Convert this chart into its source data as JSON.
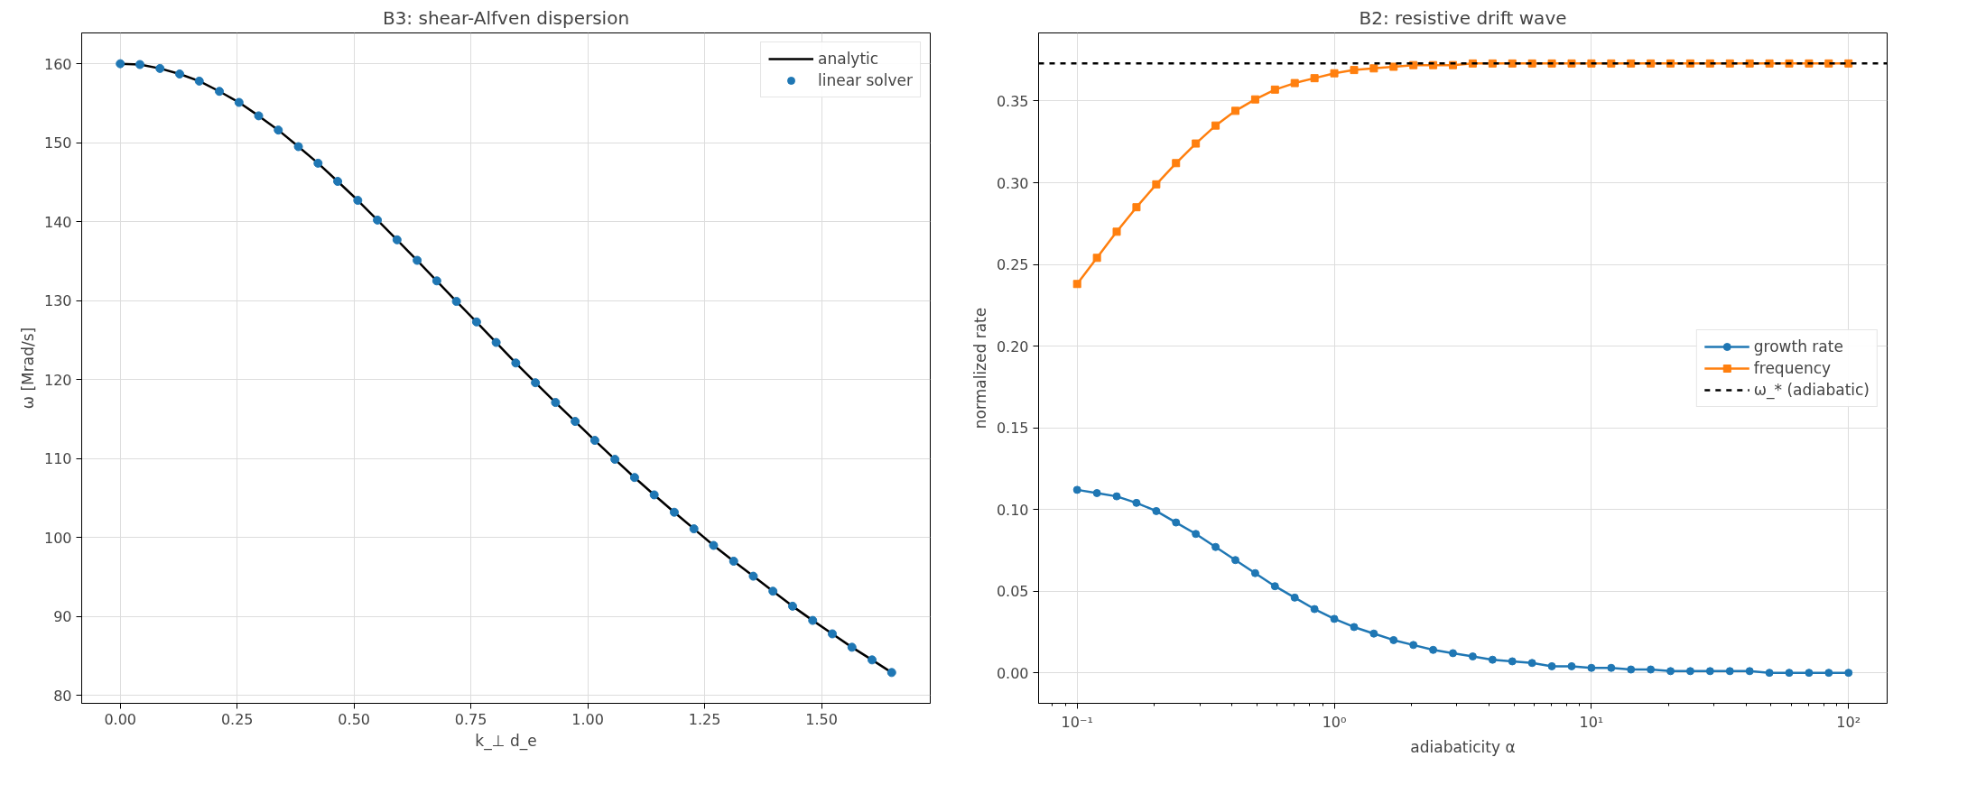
{
  "chart_data": [
    {
      "type": "line",
      "title": "B3: shear-Alfven dispersion",
      "xlabel": "k_⊥ d_e",
      "ylabel": "ω [Mrad/s]",
      "x": [
        0,
        0.042,
        0.085,
        0.127,
        0.169,
        0.212,
        0.254,
        0.296,
        0.338,
        0.381,
        0.423,
        0.465,
        0.508,
        0.55,
        0.592,
        0.635,
        0.677,
        0.719,
        0.762,
        0.804,
        0.846,
        0.888,
        0.931,
        0.973,
        1.015,
        1.058,
        1.1,
        1.142,
        1.185,
        1.227,
        1.269,
        1.312,
        1.354,
        1.396,
        1.438,
        1.481,
        1.523,
        1.565,
        1.608,
        1.65
      ],
      "series": [
        {
          "name": "analytic",
          "marker": "none",
          "line_style": "solid",
          "color": "#000000",
          "values": [
            160.0,
            159.9,
            159.4,
            158.7,
            157.8,
            156.5,
            155.1,
            153.4,
            151.6,
            149.5,
            147.4,
            145.1,
            142.7,
            140.2,
            137.7,
            135.1,
            132.5,
            129.9,
            127.3,
            124.7,
            122.1,
            119.6,
            117.1,
            114.7,
            112.3,
            109.9,
            107.6,
            105.4,
            103.2,
            101.1,
            99.0,
            97.0,
            95.1,
            93.2,
            91.3,
            89.5,
            87.8,
            86.1,
            84.5,
            82.9
          ]
        },
        {
          "name": "linear solver",
          "type": "scatter",
          "marker": "circle",
          "color": "#1f77b4",
          "values": [
            160.0,
            159.9,
            159.4,
            158.7,
            157.8,
            156.5,
            155.1,
            153.4,
            151.6,
            149.5,
            147.4,
            145.1,
            142.7,
            140.2,
            137.7,
            135.1,
            132.5,
            129.9,
            127.3,
            124.7,
            122.1,
            119.6,
            117.1,
            114.7,
            112.3,
            109.9,
            107.6,
            105.4,
            103.2,
            101.1,
            99.0,
            97.0,
            95.1,
            93.2,
            91.3,
            89.5,
            87.8,
            86.1,
            84.5,
            82.9
          ]
        }
      ],
      "xlim": [
        -0.0825,
        1.7325
      ],
      "ylim": [
        79.0,
        163.9
      ],
      "xticks": [
        {
          "value": 0,
          "label": "0.00"
        },
        {
          "value": 0.25,
          "label": "0.25"
        },
        {
          "value": 0.5,
          "label": "0.50"
        },
        {
          "value": 0.75,
          "label": "0.75"
        },
        {
          "value": 1,
          "label": "1.00"
        },
        {
          "value": 1.25,
          "label": "1.25"
        },
        {
          "value": 1.5,
          "label": "1.50"
        }
      ],
      "yticks": [
        80,
        90,
        100,
        110,
        120,
        130,
        140,
        150,
        160
      ],
      "grid": true,
      "legend": "top right"
    },
    {
      "type": "line",
      "title": "B2: resistive drift wave",
      "xlabel": "adiabaticity α",
      "ylabel": "normalized rate",
      "log": "x",
      "x": [
        0.1,
        0.1194,
        0.1425,
        0.1701,
        0.2031,
        0.2424,
        0.2894,
        0.3455,
        0.4125,
        0.4924,
        0.5878,
        0.7017,
        0.8377,
        1,
        1.194,
        1.425,
        1.701,
        2.031,
        2.424,
        2.894,
        3.455,
        4.125,
        4.924,
        5.878,
        7.017,
        8.377,
        10,
        11.94,
        14.25,
        17.01,
        20.31,
        24.24,
        28.94,
        34.55,
        41.25,
        49.24,
        58.78,
        70.17,
        83.77,
        100
      ],
      "series": [
        {
          "name": "growth rate",
          "marker": "circle",
          "line_style": "solid",
          "color": "#1f77b4",
          "values": [
            0.112,
            0.11,
            0.108,
            0.104,
            0.099,
            0.092,
            0.085,
            0.077,
            0.069,
            0.061,
            0.053,
            0.046,
            0.039,
            0.033,
            0.028,
            0.024,
            0.02,
            0.017,
            0.014,
            0.012,
            0.01,
            0.008,
            0.007,
            0.006,
            0.004,
            0.004,
            0.003,
            0.003,
            0.002,
            0.002,
            0.001,
            0.001,
            0.001,
            0.001,
            0.001,
            0.0,
            0.0,
            0.0,
            0.0,
            0.0
          ]
        },
        {
          "name": "frequency",
          "marker": "square",
          "line_style": "solid",
          "color": "#ff7f0e",
          "values": [
            0.238,
            0.254,
            0.27,
            0.285,
            0.299,
            0.312,
            0.324,
            0.335,
            0.344,
            0.351,
            0.357,
            0.361,
            0.364,
            0.367,
            0.369,
            0.37,
            0.371,
            0.372,
            0.372,
            0.372,
            0.373,
            0.373,
            0.373,
            0.373,
            0.373,
            0.373,
            0.373,
            0.373,
            0.373,
            0.373,
            0.373,
            0.373,
            0.373,
            0.373,
            0.373,
            0.373,
            0.373,
            0.373,
            0.373,
            0.373
          ]
        }
      ],
      "ref_lines": [
        {
          "axis": "y",
          "value": 0.373,
          "label": "ω_* (adiabatic)",
          "color": "#000000",
          "line_style": "dashed"
        }
      ],
      "xlim": [
        0.0708,
        141.3
      ],
      "ylim": [
        -0.0187,
        0.3917
      ],
      "xticks": [
        {
          "value": 0.1,
          "label": "10⁻¹"
        },
        {
          "value": 1,
          "label": "10⁰"
        },
        {
          "value": 10,
          "label": "10¹"
        },
        {
          "value": 100,
          "label": "10²"
        }
      ],
      "yticks": [
        {
          "value": 0,
          "label": "0.00"
        },
        {
          "value": 0.05,
          "label": "0.05"
        },
        {
          "value": 0.1,
          "label": "0.10"
        },
        {
          "value": 0.15,
          "label": "0.15"
        },
        {
          "value": 0.2,
          "label": "0.20"
        },
        {
          "value": 0.25,
          "label": "0.25"
        },
        {
          "value": 0.3,
          "label": "0.30"
        },
        {
          "value": 0.35,
          "label": "0.35"
        }
      ],
      "grid": true,
      "legend": "right"
    }
  ]
}
